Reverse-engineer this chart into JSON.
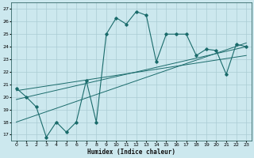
{
  "xlabel": "Humidex (Indice chaleur)",
  "ylabel": "",
  "xlim": [
    -0.5,
    23.5
  ],
  "ylim": [
    16.5,
    27.5
  ],
  "xticks": [
    0,
    1,
    2,
    3,
    4,
    5,
    6,
    7,
    8,
    9,
    10,
    11,
    12,
    13,
    14,
    15,
    16,
    17,
    18,
    19,
    20,
    21,
    22,
    23
  ],
  "yticks": [
    17,
    18,
    19,
    20,
    21,
    22,
    23,
    24,
    25,
    26,
    27
  ],
  "bg_color": "#cce8ee",
  "grid_color": "#aaccd4",
  "line_color": "#1a6b6b",
  "line1_x": [
    0,
    1,
    2,
    3,
    4,
    5,
    6,
    7,
    8,
    9,
    10,
    11,
    12,
    13,
    14,
    15,
    16,
    17,
    18,
    19,
    20,
    21,
    22,
    23
  ],
  "line1_y": [
    20.7,
    20.0,
    19.2,
    16.8,
    18.0,
    17.2,
    18.0,
    21.3,
    18.0,
    25.0,
    26.3,
    25.8,
    26.8,
    26.5,
    22.8,
    25.0,
    25.0,
    25.0,
    23.3,
    23.8,
    23.7,
    21.8,
    24.2,
    24.0
  ],
  "trend1_x": [
    0,
    23
  ],
  "trend1_y": [
    20.5,
    23.3
  ],
  "trend2_x": [
    0,
    23
  ],
  "trend2_y": [
    19.8,
    24.0
  ],
  "trend3_x": [
    0,
    23
  ],
  "trend3_y": [
    18.0,
    24.3
  ]
}
